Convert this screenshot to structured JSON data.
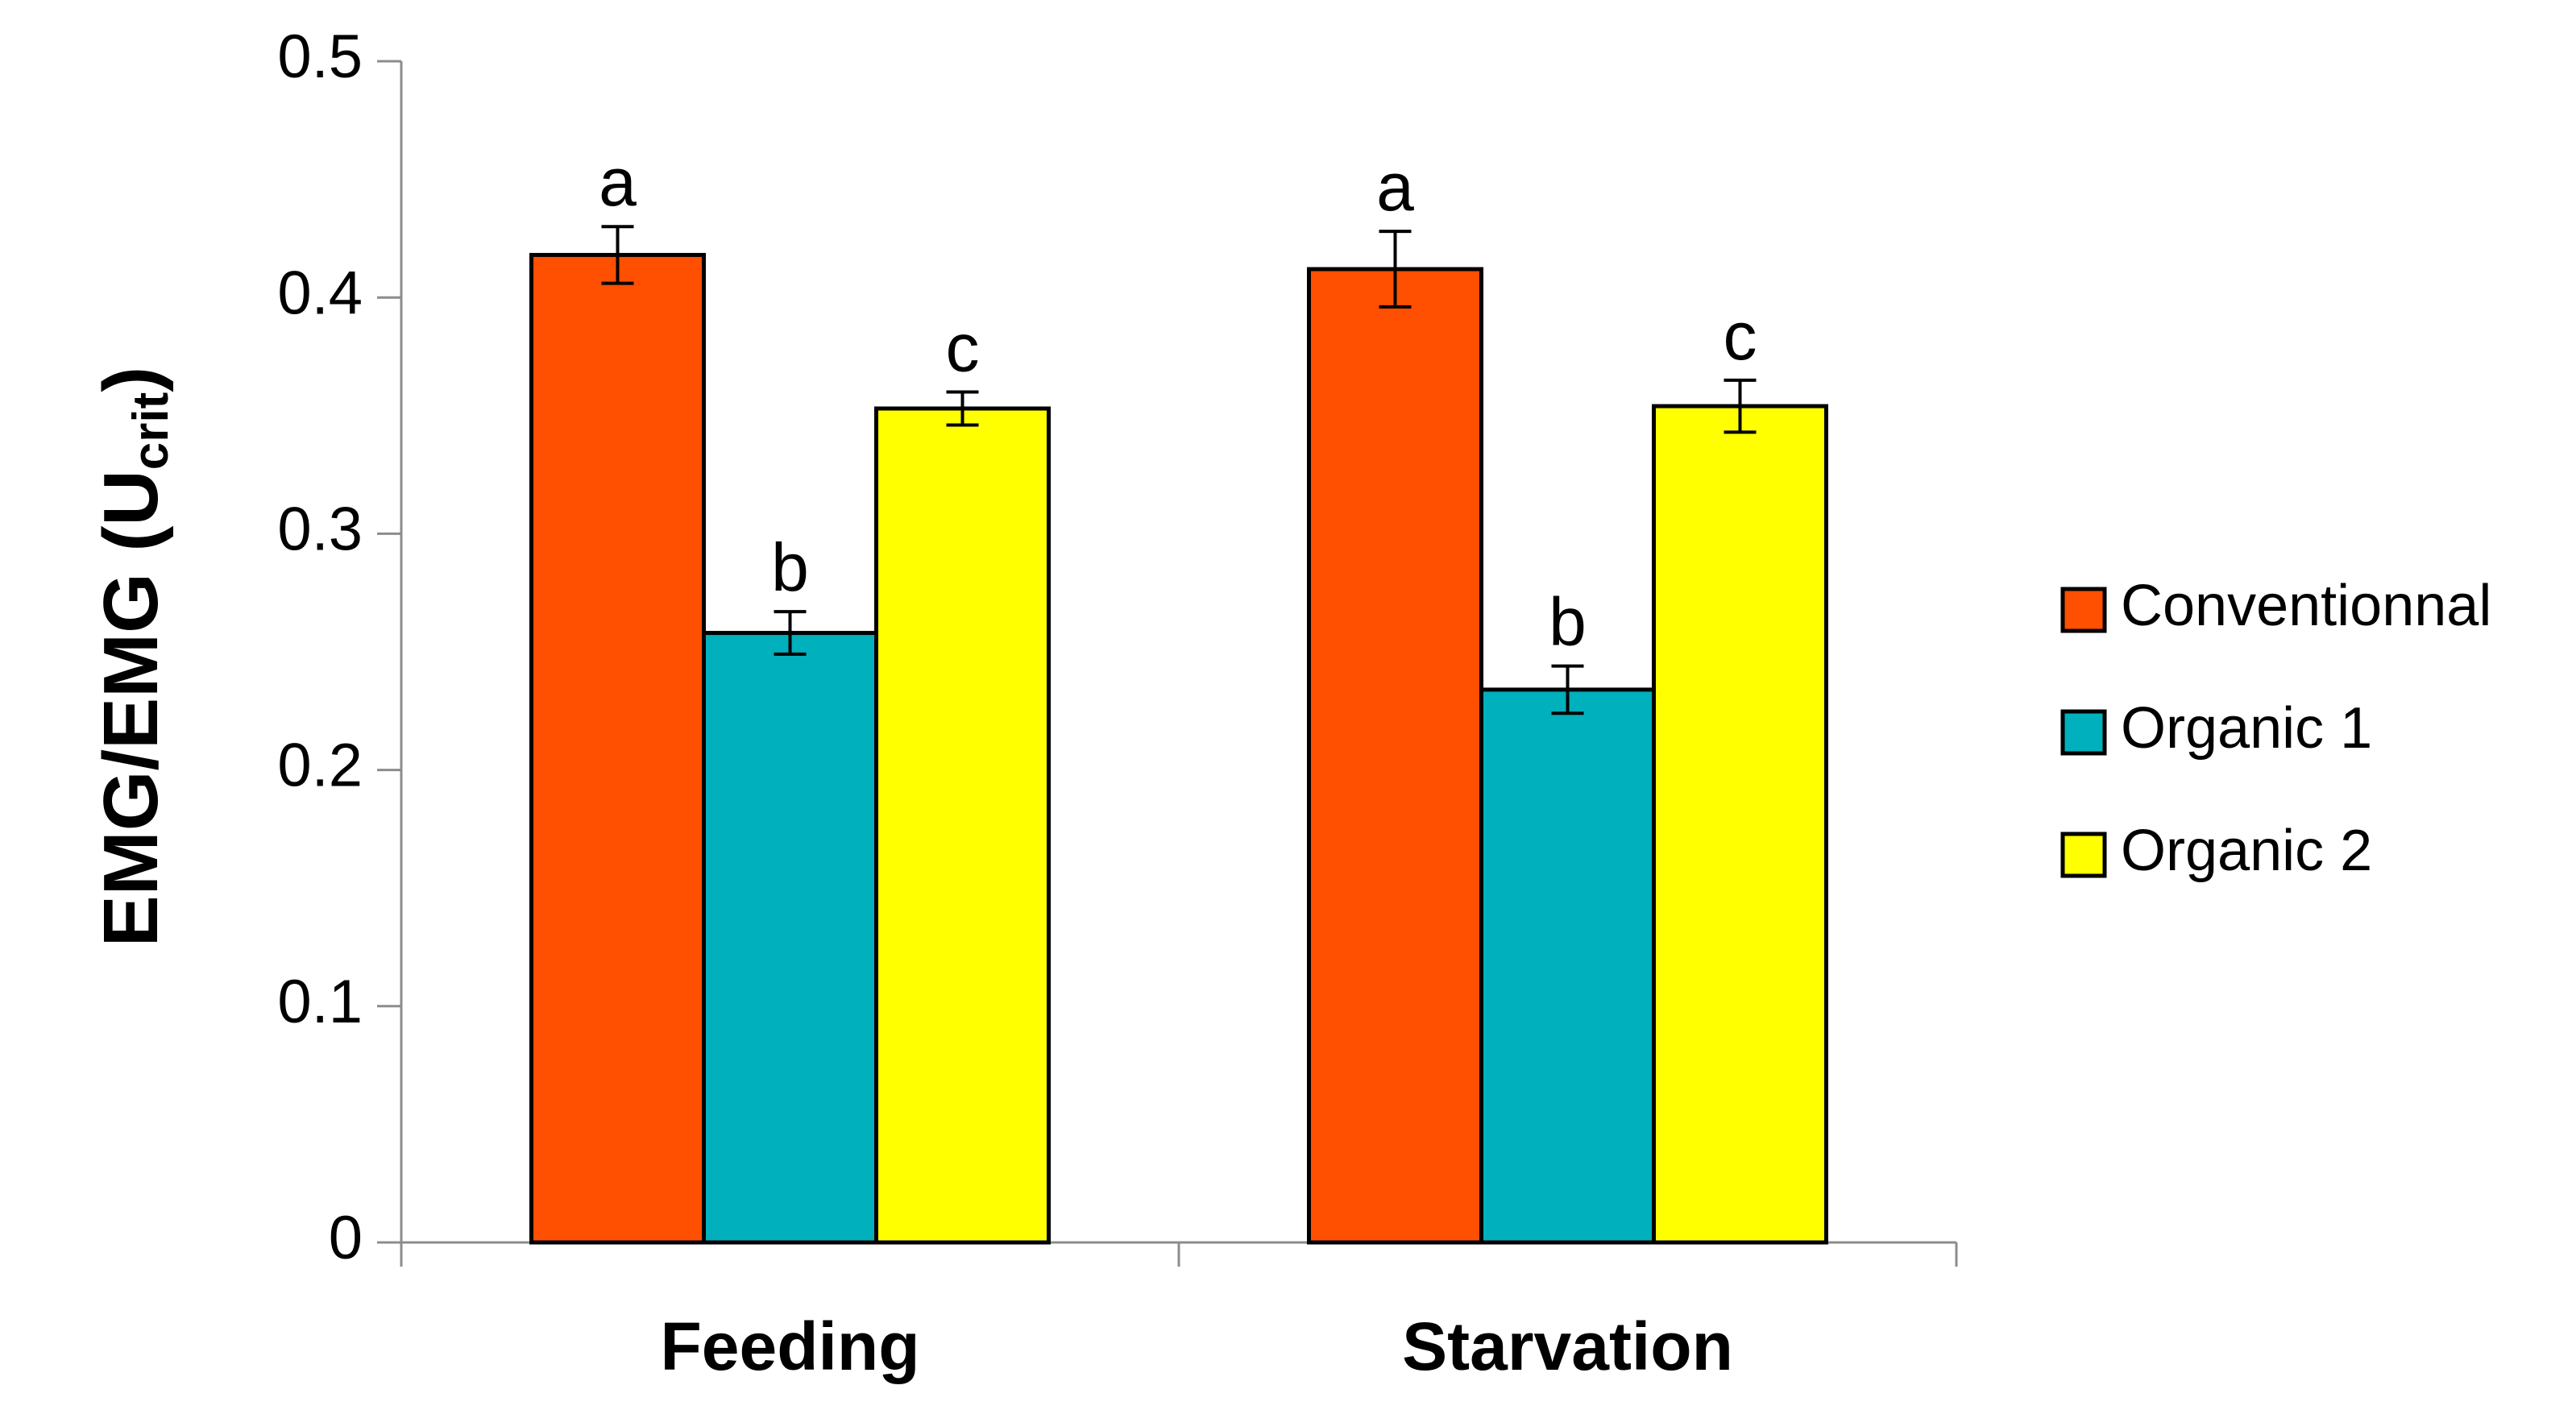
{
  "chart_data": {
    "type": "bar",
    "title": "",
    "xlabel": "",
    "ylabel": {
      "main": "EMG/EMG (U",
      "subscript": "crit",
      "close": ")"
    },
    "ylim": [
      0,
      0.5
    ],
    "yticks": [
      0,
      0.1,
      0.2,
      0.3,
      0.4,
      0.5
    ],
    "ytick_labels": [
      "0",
      "0.1",
      "0.2",
      "0.3",
      "0.4",
      "0.5"
    ],
    "categories": [
      "Feeding",
      "Starvation"
    ],
    "series": [
      {
        "name": "Conventionnal",
        "color": "#FF4F00",
        "values": [
          0.418,
          0.412
        ],
        "errors": [
          0.012,
          0.016
        ],
        "annotations": [
          "a",
          "a"
        ]
      },
      {
        "name": "Organic 1",
        "color": "#00B0BC",
        "values": [
          0.258,
          0.234
        ],
        "errors": [
          0.009,
          0.01
        ],
        "annotations": [
          "b",
          "b"
        ]
      },
      {
        "name": "Organic 2",
        "color": "#FFFF00",
        "values": [
          0.353,
          0.354
        ],
        "errors": [
          0.007,
          0.011
        ],
        "annotations": [
          "c",
          "c"
        ]
      }
    ],
    "legend_position": "right",
    "grid": false
  }
}
